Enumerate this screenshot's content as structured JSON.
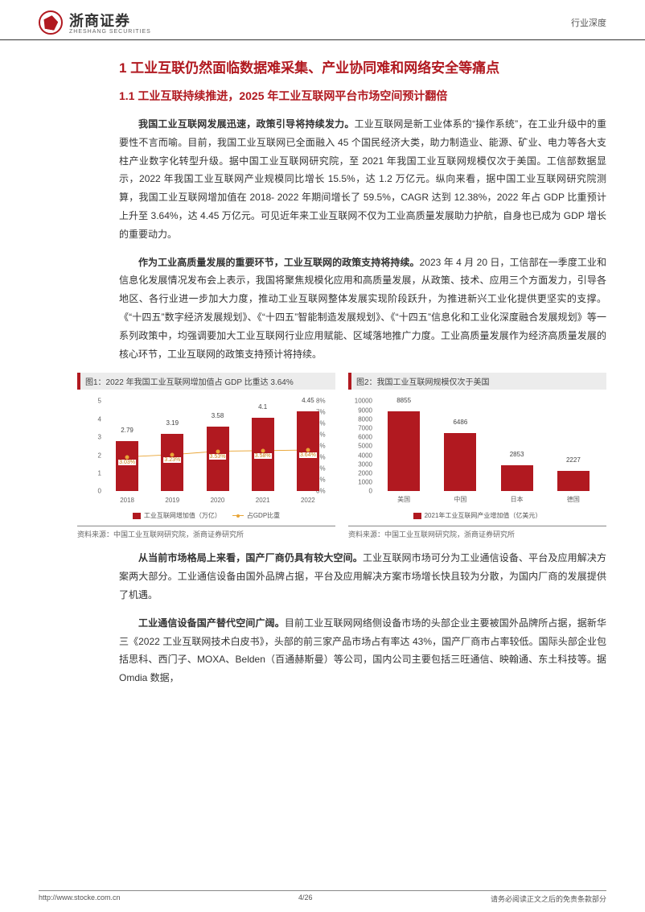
{
  "header": {
    "brand": "浙商证券",
    "brand_sub": "ZHESHANG SECURITIES",
    "category": "行业深度"
  },
  "section": {
    "h1": "1 工业互联仍然面临数据难采集、产业协同难和网络安全等痛点",
    "h2": "1.1 工业互联持续推进，2025 年工业互联网平台市场空间预计翻倍",
    "p1_bold": "我国工业互联网发展迅速，政策引导将持续发力。",
    "p1": "工业互联网是新工业体系的“操作系统”，在工业升级中的重要性不言而喻。目前，我国工业互联网已全面融入 45 个国民经济大类，助力制造业、能源、矿业、电力等各大支柱产业数字化转型升级。据中国工业互联网研究院，至 2021 年我国工业互联网规模仅次于美国。工信部数据显示，2022 年我国工业互联网产业规模同比增长 15.5%，达 1.2 万亿元。纵向来看，据中国工业互联网研究院测算，我国工业互联网增加值在 2018- 2022 年期间增长了 59.5%，CAGR 达到 12.38%，2022 年占 GDP 比重预计上升至 3.64%，达 4.45 万亿元。可见近年来工业互联网不仅为工业高质量发展助力护航，自身也已成为 GDP 增长的重要动力。",
    "p2_bold": "作为工业高质量发展的重要环节，工业互联网的政策支持将持续。",
    "p2": "2023 年 4 月 20 日，工信部在一季度工业和信息化发展情况发布会上表示，我国将聚焦规模化应用和高质量发展，从政策、技术、应用三个方面发力，引导各地区、各行业进一步加大力度，推动工业互联网整体发展实现阶段跃升，为推进新兴工业化提供更坚实的支撑。《“十四五”数字经济发展规划》、《“十四五”智能制造发展规划》、《“十四五”信息化和工业化深度融合发展规划》等一系列政策中，均强调要加大工业互联网行业应用赋能、区域落地推广力度。工业高质量发展作为经济高质量发展的核心环节，工业互联网的政策支持预计将持续。",
    "p3_bold": "从当前市场格局上来看，国产厂商仍具有较大空间。",
    "p3": "工业互联网市场可分为工业通信设备、平台及应用解决方案两大部分。工业通信设备由国外品牌占据，平台及应用解决方案市场增长快且较为分散，为国内厂商的发展提供了机遇。",
    "p4_bold": "工业通信设备国产替代空间广阔。",
    "p4": "目前工业互联网网络侧设备市场的头部企业主要被国外品牌所占据，据新华三《2022 工业互联网技术白皮书》，头部的前三家产品市场占有率达 43%，国产厂商市占率较低。国际头部企业包括思科、西门子、MOXA、Belden（百通赫斯曼）等公司，国内公司主要包括三旺通信、映翰通、东土科技等。据 Omdia 数据，"
  },
  "chart1": {
    "title": "图1：2022 年我国工业互联网增加值占 GDP 比重达 3.64%",
    "type": "bar+line",
    "categories": [
      "2018",
      "2019",
      "2020",
      "2021",
      "2022"
    ],
    "bar_values": [
      2.79,
      3.19,
      3.58,
      4.1,
      4.45
    ],
    "bar_labels": [
      "2.79",
      "3.19",
      "3.58",
      "4.1",
      "4.45"
    ],
    "line_values": [
      3.03,
      3.23,
      3.53,
      3.58,
      3.64
    ],
    "line_labels": [
      "3.03%",
      "3.23%",
      "3.53%",
      "3.58%",
      "3.64%"
    ],
    "y_left": {
      "min": 0,
      "max": 5,
      "ticks": [
        0,
        1,
        2,
        3,
        4,
        5
      ]
    },
    "y_right": {
      "min": 0,
      "max": 8,
      "ticks": [
        "0%",
        "1%",
        "2%",
        "3%",
        "4%",
        "5%",
        "6%",
        "7%",
        "8%"
      ]
    },
    "bar_color": "#b11920",
    "line_color": "#e9a536",
    "legend": {
      "bar": "工业互联网增加值（万亿）",
      "line": "占GDP比重"
    },
    "source": "资料来源：中国工业互联网研究院，浙商证券研究所"
  },
  "chart2": {
    "title": "图2：我国工业互联网规模仅次于美国",
    "type": "bar",
    "categories": [
      "美国",
      "中国",
      "日本",
      "德国"
    ],
    "values": [
      8855,
      6486,
      2853,
      2227
    ],
    "labels": [
      "8855",
      "6486",
      "2853",
      "2227"
    ],
    "y": {
      "min": 0,
      "max": 10000,
      "ticks": [
        0,
        1000,
        2000,
        3000,
        4000,
        5000,
        6000,
        7000,
        8000,
        9000,
        10000
      ]
    },
    "bar_color": "#b11920",
    "legend": {
      "bar": "2021年工业互联网产业增加值（亿美元）"
    },
    "source": "资料来源：中国工业互联网研究院，浙商证券研究所"
  },
  "footer": {
    "url": "http://www.stocke.com.cn",
    "page": "4/26",
    "disclaimer": "请务必阅读正文之后的免责条款部分"
  },
  "colors": {
    "brand_red": "#b11920",
    "text": "#333333",
    "grey_bg": "#ececec",
    "line_orange": "#e9a536"
  }
}
